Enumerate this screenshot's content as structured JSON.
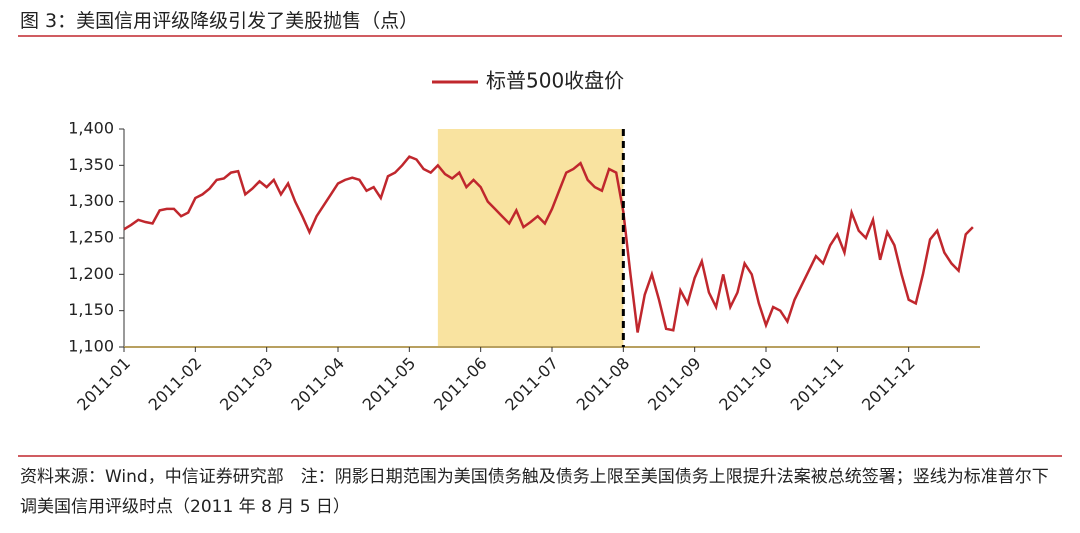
{
  "header": {
    "title": "图 3：美国信用评级降级引发了美股抛售（点）"
  },
  "chart_data": {
    "type": "line",
    "series": [
      {
        "name": "标普500收盘价",
        "color": "#c0272d",
        "x": [
          0,
          0.1,
          0.2,
          0.3,
          0.4,
          0.5,
          0.6,
          0.7,
          0.8,
          0.9,
          1,
          1.1,
          1.2,
          1.3,
          1.4,
          1.5,
          1.6,
          1.7,
          1.8,
          1.9,
          2,
          2.1,
          2.2,
          2.3,
          2.4,
          2.5,
          2.6,
          2.7,
          2.8,
          2.9,
          3,
          3.1,
          3.2,
          3.3,
          3.4,
          3.5,
          3.6,
          3.7,
          3.8,
          3.9,
          4,
          4.1,
          4.2,
          4.3,
          4.4,
          4.5,
          4.6,
          4.7,
          4.8,
          4.9,
          5,
          5.1,
          5.2,
          5.3,
          5.4,
          5.5,
          5.6,
          5.7,
          5.8,
          5.9,
          6,
          6.1,
          6.2,
          6.3,
          6.4,
          6.5,
          6.6,
          6.7,
          6.8,
          6.9,
          7,
          7.1,
          7.2,
          7.3,
          7.4,
          7.5,
          7.6,
          7.7,
          7.8,
          7.9,
          8,
          8.1,
          8.2,
          8.3,
          8.4,
          8.5,
          8.6,
          8.7,
          8.8,
          8.9,
          9,
          9.1,
          9.2,
          9.3,
          9.4,
          9.5,
          9.6,
          9.7,
          9.8,
          9.9,
          10,
          10.1,
          10.2,
          10.3,
          10.4,
          10.5,
          10.6,
          10.7,
          10.8,
          10.9,
          11,
          11.1,
          11.2,
          11.3,
          11.4,
          11.5,
          11.6,
          11.7,
          11.8,
          11.9
        ],
        "values": [
          1262,
          1268,
          1275,
          1272,
          1270,
          1288,
          1290,
          1290,
          1280,
          1285,
          1305,
          1310,
          1318,
          1330,
          1332,
          1340,
          1342,
          1310,
          1318,
          1328,
          1320,
          1330,
          1310,
          1325,
          1300,
          1280,
          1258,
          1280,
          1295,
          1310,
          1325,
          1330,
          1333,
          1330,
          1315,
          1320,
          1305,
          1335,
          1340,
          1350,
          1362,
          1358,
          1345,
          1340,
          1350,
          1338,
          1332,
          1340,
          1320,
          1330,
          1320,
          1300,
          1290,
          1280,
          1270,
          1288,
          1265,
          1272,
          1280,
          1270,
          1290,
          1315,
          1340,
          1345,
          1353,
          1330,
          1320,
          1315,
          1345,
          1340,
          1286,
          1200,
          1120,
          1172,
          1200,
          1165,
          1125,
          1123,
          1178,
          1160,
          1195,
          1218,
          1175,
          1155,
          1200,
          1155,
          1175,
          1215,
          1200,
          1160,
          1130,
          1155,
          1150,
          1135,
          1165,
          1185,
          1205,
          1225,
          1215,
          1240,
          1255,
          1230,
          1285,
          1260,
          1250,
          1275,
          1220,
          1258,
          1240,
          1200,
          1165,
          1160,
          1200,
          1248,
          1260,
          1230,
          1215,
          1205,
          1255,
          1265
        ]
      }
    ],
    "xlim": [
      0,
      12
    ],
    "xticks": [
      {
        "value": 0,
        "label": "2011-01"
      },
      {
        "value": 1,
        "label": "2011-02"
      },
      {
        "value": 2,
        "label": "2011-03"
      },
      {
        "value": 3,
        "label": "2011-04"
      },
      {
        "value": 4,
        "label": "2011-05"
      },
      {
        "value": 5,
        "label": "2011-06"
      },
      {
        "value": 6,
        "label": "2011-07"
      },
      {
        "value": 7,
        "label": "2011-08"
      },
      {
        "value": 8,
        "label": "2011-09"
      },
      {
        "value": 9,
        "label": "2011-10"
      },
      {
        "value": 10,
        "label": "2011-11"
      },
      {
        "value": 11,
        "label": "2011-12"
      }
    ],
    "ylim": [
      1100,
      1400
    ],
    "yticks": [
      {
        "value": 1100,
        "label": "1,100"
      },
      {
        "value": 1150,
        "label": "1,150"
      },
      {
        "value": 1200,
        "label": "1,200"
      },
      {
        "value": 1250,
        "label": "1,250"
      },
      {
        "value": 1300,
        "label": "1,300"
      },
      {
        "value": 1350,
        "label": "1,350"
      },
      {
        "value": 1400,
        "label": "1,400"
      }
    ],
    "shade": {
      "range": [
        4.4,
        7.0
      ],
      "color": "#f9e3a0"
    },
    "vline": {
      "x": 7.0
    }
  },
  "footer": {
    "source": "资料来源：Wind，中信证券研究部",
    "note": "注：阴影日期范围为美国债务触及债务上限至美国债务上限提升法案被总统签署；竖线为标准普尔下调美国信用评级时点（2011 年 8 月 5 日）"
  }
}
